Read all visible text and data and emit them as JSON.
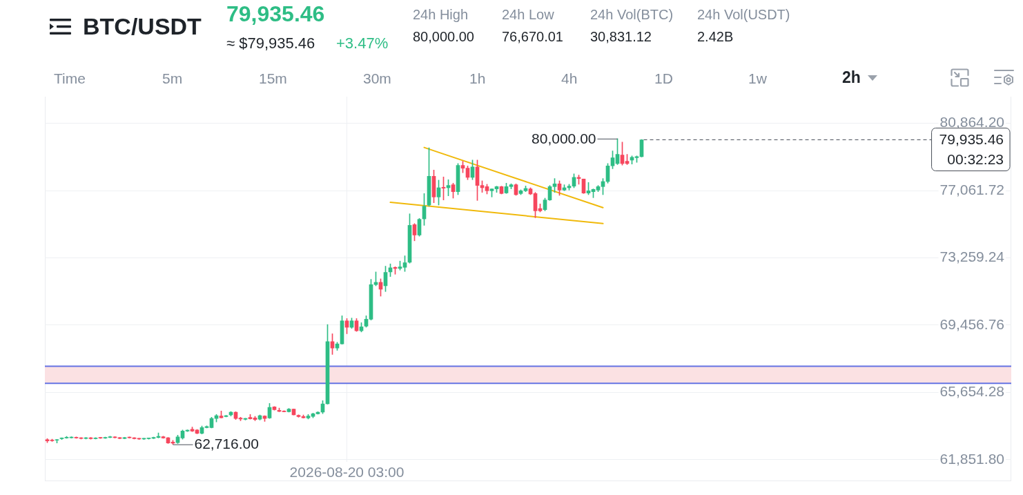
{
  "chart_data": {
    "type": "candlestick",
    "title": "BTC/USDT",
    "subtitle": "79,935.46",
    "annotations": [
      "≈ $79,935.46",
      "+3.47%",
      "24h High",
      "80,000.00",
      "24h Low",
      "76,670.01",
      "24h Vol(BTC)",
      "30,831.12",
      "24h Vol(USDT)",
      "2.42B",
      "Time",
      "5m",
      "15m",
      "30m",
      "1h",
      "4h",
      "1D",
      "1w",
      "2h",
      "80,000.00",
      "62,716.00"
    ],
    "categories": [
      null,
      null,
      null,
      null,
      null,
      null,
      null,
      null,
      null,
      null,
      null,
      null,
      null,
      null,
      null,
      null,
      null,
      null,
      null,
      null,
      null,
      null,
      null,
      null,
      null,
      null,
      null,
      null,
      null,
      null,
      null,
      null,
      null,
      null,
      null,
      null,
      null,
      null,
      null,
      null,
      null,
      null,
      null,
      null,
      null,
      null,
      null,
      null,
      null,
      null,
      null,
      null,
      null,
      null,
      null,
      null,
      null,
      null,
      null,
      null,
      null,
      null,
      "2026-08-20 03:00",
      null,
      null,
      null,
      null,
      null,
      null,
      null,
      null,
      null,
      null,
      null,
      null,
      null,
      null,
      null,
      null,
      null,
      null,
      null,
      null,
      null,
      null,
      null,
      null,
      null,
      null,
      null,
      null,
      null,
      null,
      null,
      null,
      null,
      null,
      null,
      null,
      null,
      null,
      null,
      null,
      null,
      null,
      null,
      null,
      null,
      null,
      null,
      null,
      null,
      null,
      null,
      null,
      null,
      null,
      null,
      null,
      null,
      null,
      null,
      null,
      null,
      null,
      null,
      null,
      null,
      null,
      null,
      null,
      null,
      null,
      null,
      null,
      null,
      null,
      null,
      null,
      null,
      null,
      null,
      null,
      null,
      null,
      null,
      null,
      null,
      null,
      null,
      null,
      null,
      null,
      null,
      null,
      null,
      null,
      null,
      null,
      null,
      null,
      null,
      null,
      null,
      null,
      null,
      null,
      null,
      null,
      null,
      null,
      null,
      null,
      null,
      null,
      null,
      null,
      null,
      null,
      null,
      null,
      null,
      null,
      null,
      null,
      null,
      null,
      null,
      null,
      null,
      null,
      null,
      null,
      null,
      null,
      null,
      null,
      null,
      null,
      null
    ],
    "ohlc": [
      [
        62985,
        63037,
        62815,
        62906
      ],
      [
        62960,
        63010,
        62880,
        62920
      ],
      [
        62946,
        63000,
        62790,
        62985
      ],
      [
        63037,
        63090,
        62990,
        63076
      ],
      [
        63076,
        63170,
        63060,
        63115
      ],
      [
        63090,
        63150,
        63070,
        63115
      ],
      [
        63110,
        63140,
        63060,
        63076
      ],
      [
        63080,
        63100,
        63020,
        63050
      ],
      [
        63050,
        63110,
        63020,
        63090
      ],
      [
        63090,
        63110,
        63010,
        63040
      ],
      [
        63040,
        63100,
        63020,
        63080
      ],
      [
        63090,
        63120,
        63050,
        63070
      ],
      [
        63070,
        63130,
        63050,
        63110
      ],
      [
        63110,
        63180,
        63090,
        63140
      ],
      [
        63140,
        63160,
        63080,
        63100
      ],
      [
        63100,
        63110,
        63030,
        63050
      ],
      [
        63050,
        63120,
        63030,
        63100
      ],
      [
        63110,
        63140,
        63070,
        63090
      ],
      [
        63090,
        63100,
        63020,
        63040
      ],
      [
        63040,
        63060,
        62990,
        63020
      ],
      [
        63020,
        63060,
        62990,
        63040
      ],
      [
        63040,
        63080,
        63010,
        63060
      ],
      [
        63060,
        63130,
        63040,
        63110
      ],
      [
        63102,
        63363,
        63080,
        63167
      ],
      [
        63150,
        63180,
        63060,
        63076
      ],
      [
        63090,
        63110,
        62760,
        62790
      ],
      [
        62850,
        62946,
        62716,
        62780
      ],
      [
        62815,
        63233,
        62760,
        63141
      ],
      [
        63076,
        63533,
        63010,
        63467
      ],
      [
        63467,
        63540,
        63440,
        63520
      ],
      [
        63572,
        63690,
        63440,
        63467
      ],
      [
        63533,
        63560,
        63310,
        63337
      ],
      [
        63337,
        63755,
        63300,
        63663
      ],
      [
        63660,
        63760,
        63640,
        63727
      ],
      [
        63661,
        64248,
        63640,
        64183
      ],
      [
        64183,
        64405,
        63987,
        64340
      ],
      [
        64314,
        64600,
        64210,
        64222
      ],
      [
        64290,
        64360,
        64270,
        64340
      ],
      [
        64379,
        64574,
        64314,
        64535
      ],
      [
        64535,
        64560,
        64118,
        64183
      ],
      [
        64200,
        64250,
        64050,
        64150
      ],
      [
        64130,
        64190,
        64090,
        64183
      ],
      [
        64240,
        64405,
        64140,
        64160
      ],
      [
        64210,
        64300,
        64050,
        64118
      ],
      [
        64144,
        64380,
        64090,
        64340
      ],
      [
        64314,
        64340,
        64010,
        64183
      ],
      [
        64209,
        65031,
        64180,
        64809
      ],
      [
        64835,
        64860,
        64650,
        64679
      ],
      [
        64640,
        64770,
        64560,
        64574
      ],
      [
        64590,
        64620,
        64550,
        64560
      ],
      [
        64560,
        64744,
        64535,
        64705
      ],
      [
        64705,
        64720,
        64370,
        64379
      ],
      [
        64360,
        64390,
        64250,
        64290
      ],
      [
        64290,
        64380,
        64200,
        64222
      ],
      [
        64209,
        64405,
        64150,
        64314
      ],
      [
        64300,
        64483,
        64222,
        64444
      ],
      [
        64444,
        64560,
        64420,
        64535
      ],
      [
        64535,
        65187,
        64450,
        65005
      ],
      [
        65005,
        69490,
        64990,
        68525
      ],
      [
        68525,
        68969,
        67795,
        68160
      ],
      [
        68160,
        68486,
        68030,
        68395
      ],
      [
        68395,
        69986,
        68380,
        69699
      ],
      [
        69699,
        69830,
        68969,
        69334
      ],
      [
        69334,
        69856,
        69270,
        69699
      ],
      [
        69699,
        69830,
        69100,
        69138
      ],
      [
        69138,
        69595,
        69070,
        69360
      ],
      [
        69399,
        69986,
        69340,
        69791
      ],
      [
        69791,
        72047,
        69740,
        71747
      ],
      [
        71747,
        72464,
        71680,
        71877
      ],
      [
        71877,
        72073,
        71094,
        71486
      ],
      [
        71681,
        72790,
        71355,
        72438
      ],
      [
        72464,
        72920,
        72203,
        72698
      ],
      [
        72720,
        72760,
        72334,
        72660
      ],
      [
        72660,
        73077,
        72568,
        72750
      ],
      [
        72724,
        73376,
        72490,
        72985
      ],
      [
        73011,
        75750,
        72960,
        75098
      ],
      [
        75137,
        75200,
        74224,
        74550
      ],
      [
        74550,
        75490,
        74485,
        75437
      ],
      [
        75463,
        76897,
        75098,
        76180
      ],
      [
        76245,
        79479,
        76180,
        77875
      ],
      [
        77875,
        78228,
        76376,
        76702
      ],
      [
        76702,
        77654,
        76245,
        77223
      ],
      [
        77250,
        77836,
        76533,
        77200
      ],
      [
        77223,
        77680,
        76767,
        77354
      ],
      [
        77393,
        77484,
        76636,
        77002
      ],
      [
        77002,
        78592,
        76832,
        78488
      ],
      [
        78488,
        78723,
        78071,
        78332
      ],
      [
        78332,
        78462,
        77680,
        77810
      ],
      [
        77810,
        78788,
        77680,
        78397
      ],
      [
        78397,
        78788,
        76506,
        77354
      ],
      [
        77354,
        77615,
        76962,
        77223
      ],
      [
        77288,
        77420,
        76871,
        77054
      ],
      [
        77054,
        77160,
        76702,
        77158
      ],
      [
        77158,
        77314,
        76962,
        77288
      ],
      [
        77288,
        77314,
        76871,
        76897
      ],
      [
        76930,
        77484,
        76900,
        77288
      ],
      [
        77288,
        77450,
        77160,
        77393
      ],
      [
        77393,
        77445,
        76793,
        76832
      ],
      [
        76897,
        77106,
        76832,
        77054
      ],
      [
        77054,
        77327,
        77002,
        77184
      ],
      [
        77158,
        77223,
        76832,
        76871
      ],
      [
        76897,
        76962,
        75528,
        75919
      ],
      [
        76050,
        76310,
        75854,
        75919
      ],
      [
        75984,
        76636,
        75919,
        76532
      ],
      [
        76532,
        77354,
        76506,
        77288
      ],
      [
        77288,
        77745,
        76962,
        77445
      ],
      [
        77445,
        77615,
        76793,
        77093
      ],
      [
        77093,
        77393,
        77054,
        77223
      ],
      [
        77223,
        77420,
        77093,
        77314
      ],
      [
        77314,
        78006,
        77223,
        77810
      ],
      [
        77810,
        77940,
        77420,
        77745
      ],
      [
        77719,
        77719,
        76897,
        76923
      ],
      [
        76923,
        77523,
        76832,
        77054
      ],
      [
        77000,
        77158,
        76662,
        77130
      ],
      [
        77093,
        77354,
        77002,
        77288
      ],
      [
        77288,
        77745,
        76832,
        77575
      ],
      [
        77575,
        78592,
        77484,
        78462
      ],
      [
        78462,
        79310,
        78300,
        78919
      ],
      [
        78593,
        80000,
        78528,
        79114
      ],
      [
        79075,
        79806,
        78500,
        78593
      ],
      [
        78724,
        79114,
        78528,
        78593
      ],
      [
        78788,
        79023,
        78560,
        78945
      ],
      [
        78919,
        79023,
        78658,
        78984
      ],
      [
        78984,
        79950,
        78960,
        79935.46
      ],
      null,
      null,
      null,
      null,
      null,
      null,
      null,
      null,
      null,
      null,
      null,
      null,
      null,
      null,
      null,
      null,
      null,
      null,
      null,
      null,
      null,
      null,
      null,
      null,
      null,
      null,
      null,
      null,
      null,
      null,
      null,
      null,
      null,
      null,
      null,
      null,
      null,
      null,
      null,
      null,
      null,
      null,
      null,
      null,
      null,
      null,
      null,
      null,
      null,
      null,
      null,
      null,
      null,
      null,
      null,
      null,
      null,
      null,
      null,
      null,
      null,
      null,
      null,
      null,
      null,
      null,
      null,
      null,
      null,
      null,
      null,
      null,
      null,
      null,
      null,
      null
    ],
    "colors": [
      "#f6465d",
      "#f6465d",
      "#2ebd85",
      "#2ebd85",
      "#2ebd85",
      "#2ebd85",
      "#f6465d",
      "#f6465d",
      "#2ebd85",
      "#f6465d",
      "#2ebd85",
      "#f6465d",
      "#2ebd85",
      "#2ebd85",
      "#f6465d",
      "#f6465d",
      "#2ebd85",
      "#f6465d",
      "#f6465d",
      "#f6465d",
      "#2ebd85",
      "#2ebd85",
      "#2ebd85",
      "#2ebd85",
      "#f6465d",
      "#f6465d",
      "#f6465d",
      "#2ebd85",
      "#2ebd85",
      "#2ebd85",
      "#f6465d",
      "#f6465d",
      "#2ebd85",
      "#2ebd85",
      "#2ebd85",
      "#2ebd85",
      "#f6465d",
      "#2ebd85",
      "#2ebd85",
      "#f6465d",
      "#f6465d",
      "#2ebd85",
      "#f6465d",
      "#f6465d",
      "#2ebd85",
      "#f6465d",
      "#2ebd85",
      "#f6465d",
      "#f6465d",
      "#f6465d",
      "#2ebd85",
      "#f6465d",
      "#f6465d",
      "#f6465d",
      "#2ebd85",
      "#2ebd85",
      "#2ebd85",
      "#2ebd85",
      "#2ebd85",
      "#f6465d",
      "#2ebd85",
      "#2ebd85",
      "#f6465d",
      "#2ebd85",
      "#f6465d",
      "#2ebd85",
      "#2ebd85",
      "#2ebd85",
      "#2ebd85",
      "#f6465d",
      "#2ebd85",
      "#2ebd85",
      "#f6465d",
      "#2ebd85",
      "#2ebd85",
      "#2ebd85",
      "#f6465d",
      "#2ebd85",
      "#2ebd85",
      "#2ebd85",
      "#f6465d",
      "#2ebd85",
      "#f6465d",
      "#2ebd85",
      "#f6465d",
      "#2ebd85",
      "#f6465d",
      "#f6465d",
      "#2ebd85",
      "#f6465d",
      "#f6465d",
      "#f6465d",
      "#2ebd85",
      "#2ebd85",
      "#f6465d",
      "#2ebd85",
      "#2ebd85",
      "#f6465d",
      "#2ebd85",
      "#2ebd85",
      "#f6465d",
      "#f6465d",
      "#f6465d",
      "#2ebd85",
      "#2ebd85",
      "#2ebd85",
      "#f6465d",
      "#2ebd85",
      "#2ebd85",
      "#2ebd85",
      "#f6465d",
      "#f6465d",
      "#2ebd85",
      "#2ebd85",
      "#2ebd85",
      "#2ebd85",
      "#2ebd85",
      "#2ebd85",
      "#2ebd85",
      "#f6465d",
      "#f6465d",
      "#2ebd85",
      "#2ebd85",
      "#2ebd85",
      null,
      null,
      null,
      null,
      null,
      null,
      null,
      null,
      null,
      null,
      null,
      null,
      null,
      null,
      null,
      null,
      null,
      null,
      null,
      null,
      null,
      null,
      null,
      null,
      null,
      null,
      null,
      null,
      null,
      null,
      null,
      null,
      null,
      null,
      null,
      null,
      null,
      null,
      null,
      null,
      null,
      null,
      null,
      null,
      null,
      null,
      null,
      null,
      null,
      null,
      null,
      null,
      null,
      null,
      null,
      null,
      null,
      null,
      null,
      null,
      null,
      null,
      null,
      null,
      null,
      null,
      null,
      null,
      null,
      null,
      null,
      null,
      null,
      null,
      null,
      null
    ],
    "series": [
      {
        "type": "line",
        "color": "#f0b90b",
        "values": [
          null,
          null,
          null,
          null,
          null,
          null,
          null,
          null,
          null,
          null,
          null,
          null,
          null,
          null,
          null,
          null,
          null,
          null,
          null,
          null,
          null,
          null,
          null,
          null,
          null,
          null,
          null,
          null,
          null,
          null,
          null,
          null,
          null,
          null,
          null,
          null,
          null,
          null,
          null,
          null,
          null,
          null,
          null,
          null,
          null,
          null,
          null,
          null,
          null,
          null,
          null,
          null,
          null,
          null,
          null,
          null,
          null,
          null,
          null,
          null,
          null,
          null,
          null,
          null,
          null,
          null,
          null,
          null,
          null,
          null,
          null,
          null,
          null,
          null,
          null,
          null,
          null,
          null,
          79500,
          null,
          null,
          null,
          null,
          null,
          null,
          null,
          null,
          null,
          null,
          null,
          null,
          null,
          null,
          null,
          null,
          null,
          null,
          null,
          null,
          null,
          null,
          null,
          null,
          null,
          null,
          null,
          null,
          null,
          null,
          null,
          null,
          null,
          null,
          null,
          null,
          76100,
          null,
          null,
          null,
          null,
          null,
          null,
          null,
          null,
          null,
          null,
          null,
          null,
          null,
          null,
          null,
          null,
          null,
          null,
          null,
          null,
          null,
          null,
          null,
          null,
          null,
          null,
          null,
          null,
          null,
          null,
          null,
          null,
          null,
          null,
          null,
          null,
          null,
          null,
          null,
          null,
          null,
          null,
          null,
          null,
          null,
          null,
          null,
          null,
          null,
          null,
          null,
          null,
          null,
          null,
          null,
          null,
          null,
          null,
          null,
          null,
          null,
          null,
          null,
          null,
          null,
          null,
          null,
          null,
          null,
          null,
          null,
          null,
          null,
          null,
          null,
          null,
          null,
          null,
          null,
          null,
          null,
          null,
          null,
          null
        ]
      },
      {
        "type": "line",
        "color": "#f0b90b",
        "values": [
          null,
          null,
          null,
          null,
          null,
          null,
          null,
          null,
          null,
          null,
          null,
          null,
          null,
          null,
          null,
          null,
          null,
          null,
          null,
          null,
          null,
          null,
          null,
          null,
          null,
          null,
          null,
          null,
          null,
          null,
          null,
          null,
          null,
          null,
          null,
          null,
          null,
          null,
          null,
          null,
          null,
          null,
          null,
          null,
          null,
          null,
          null,
          null,
          null,
          null,
          null,
          null,
          null,
          null,
          null,
          null,
          null,
          null,
          null,
          null,
          null,
          null,
          null,
          null,
          null,
          null,
          null,
          null,
          null,
          null,
          null,
          76400,
          null,
          null,
          null,
          null,
          null,
          null,
          null,
          null,
          null,
          null,
          null,
          null,
          null,
          null,
          null,
          null,
          null,
          null,
          null,
          null,
          null,
          null,
          null,
          null,
          null,
          null,
          null,
          null,
          null,
          null,
          null,
          null,
          null,
          null,
          null,
          null,
          null,
          null,
          null,
          null,
          null,
          null,
          null,
          75200,
          null,
          null,
          null,
          null,
          null,
          null,
          null,
          null,
          null,
          null,
          null,
          null,
          null,
          null,
          null,
          null,
          null,
          null,
          null,
          null,
          null,
          null,
          null,
          null,
          null,
          null,
          null,
          null,
          null,
          null,
          null,
          null,
          null,
          null,
          null,
          null,
          null,
          null,
          null,
          null,
          null,
          null,
          null,
          null,
          null,
          null,
          null,
          null,
          null,
          null,
          null,
          null,
          null,
          null,
          null,
          null,
          null,
          null,
          null,
          null,
          null,
          null,
          null,
          null,
          null,
          null,
          null,
          null,
          null,
          null,
          null,
          null,
          null,
          null,
          null,
          null,
          null,
          null,
          null,
          null,
          null,
          null,
          null,
          null
        ]
      }
    ],
    "ylim": [
      61734,
      82374
    ],
    "yticks": [
      {
        "value": 61851.8,
        "label": "61,851.80"
      },
      {
        "value": 65654.28,
        "label": "65,654.28"
      },
      {
        "value": 69456.76,
        "label": "69,456.76"
      },
      {
        "value": 73259.24,
        "label": "73,259.24"
      },
      {
        "value": 77061.72,
        "label": "77,061.72"
      },
      {
        "value": 80864.2,
        "label": "80,864.20"
      }
    ],
    "grid": true,
    "bands": [
      {
        "axis": "y",
        "from": 66170,
        "to": 67130,
        "color": "#fbe1e3"
      }
    ],
    "ref_lines": [
      {
        "axis": "y",
        "value": 67130,
        "color": "#6473e3"
      },
      {
        "axis": "y",
        "value": 66170,
        "color": "#6473e3"
      },
      {
        "axis": "y",
        "value": 79935.46,
        "label": "79,935.46\n00:32:23",
        "line_style": "dashed",
        "color": "#474d57"
      }
    ]
  }
}
